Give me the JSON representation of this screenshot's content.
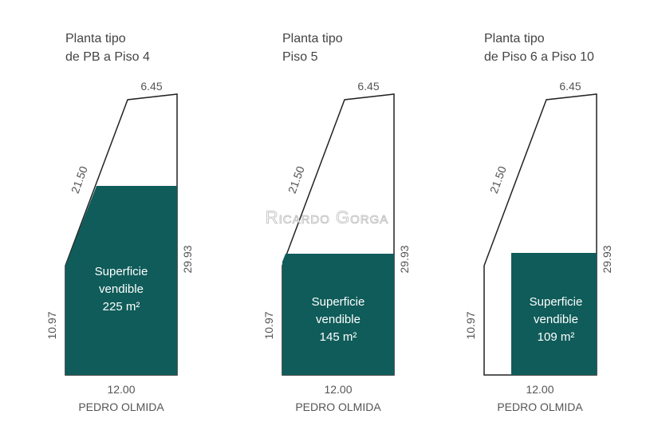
{
  "watermark": "Ricardo Gorga",
  "panels": [
    {
      "title": [
        "Planta tipo",
        "de PB a Piso 4"
      ],
      "top": "6.45",
      "diagonal": "21.50",
      "right": "29.93",
      "left": "10.97",
      "bottom": "12.00",
      "street": "PEDRO OLMIDA",
      "area": [
        "Superficie",
        "vendible",
        "225 m²"
      ]
    },
    {
      "title": [
        "Planta tipo",
        "Piso 5"
      ],
      "top": "6.45",
      "diagonal": "21.50",
      "right": "29.93",
      "left": "10.97",
      "bottom": "12.00",
      "street": "PEDRO OLMIDA",
      "area": [
        "Superficie",
        "vendible",
        "145 m²"
      ]
    },
    {
      "title": [
        "Planta tipo",
        "de Piso 6 a Piso 10"
      ],
      "top": "6.45",
      "diagonal": "21.50",
      "right": "29.93",
      "left": "10.97",
      "bottom": "12.00",
      "street": "PEDRO OLMIDA",
      "area": [
        "Superficie",
        "vendible",
        "109 m²"
      ]
    }
  ]
}
